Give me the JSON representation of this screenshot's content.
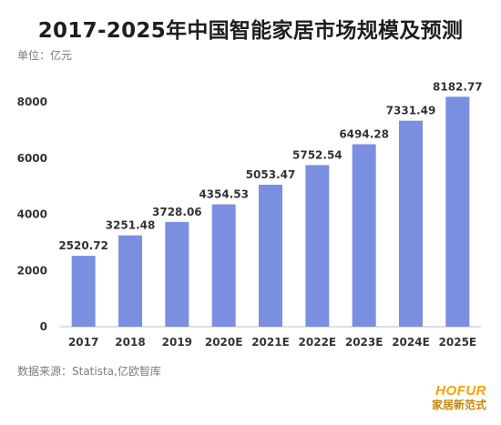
{
  "header": {
    "title": "2017-2025年中国智能家居市场规模及预测",
    "unit": "单位：亿元"
  },
  "footer": {
    "source": "数据来源：Statista,亿欧智库",
    "brand_name": "HOFUR",
    "brand_sub": "家居新范式"
  },
  "colors": {
    "bar": "#7b8fe0",
    "axis_text": "#333333",
    "label_text": "#333333"
  },
  "chart_data": {
    "type": "bar",
    "title": "2017-2025年中国智能家居市场规模及预测",
    "ylabel": "单位：亿元",
    "categories": [
      "2017",
      "2018",
      "2019",
      "2020E",
      "2021E",
      "2022E",
      "2023E",
      "2024E",
      "2025E"
    ],
    "values": [
      2520.72,
      3251.48,
      3728.06,
      4354.53,
      5053.47,
      5752.54,
      6494.28,
      7331.49,
      8182.77
    ],
    "value_labels": [
      "2520.72",
      "3251.48",
      "3728.06",
      "4354.53",
      "5053.47",
      "5752.54",
      "6494.28",
      "7331.49",
      "8182.77"
    ],
    "yticks": [
      0,
      2000,
      4000,
      6000,
      8000
    ],
    "ylim": [
      0,
      8000
    ],
    "grid": false,
    "legend": "none"
  }
}
